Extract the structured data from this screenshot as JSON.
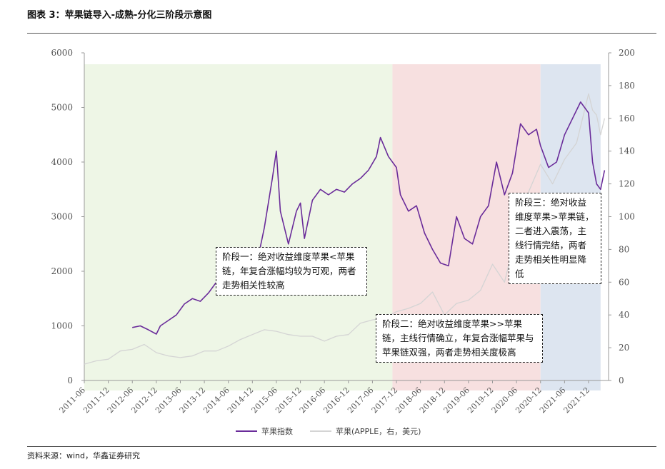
{
  "header": {
    "title": "图表 3：苹果链导入-成熟-分化三阶段示意图"
  },
  "footer": {
    "source": "资料来源：wind，华鑫证券研究"
  },
  "annotations": {
    "stage1": "阶段一：绝对收益维度苹果<苹果链，年复合涨幅均较为可观，两者走势相关性较高",
    "stage2": "阶段二：绝对收益维度苹果>>苹果链，主线行情确立，年复合涨幅苹果与苹果链双强，两者走势相关度极高",
    "stage3": "阶段三：绝对收益维度苹果>苹果链，二者进入震荡，主线行情完结，两者走势相关性明显降低"
  },
  "colors": {
    "index_line": "#6a2c9a",
    "apple_line": "#d4d4d4",
    "stage1_bg": "#eef6e6",
    "stage2_bg": "#f7e0e0",
    "stage3_bg": "#dde5f0"
  },
  "chart_data": {
    "type": "line",
    "title": "",
    "xlabel": "",
    "ylabel": "",
    "x_ticks": [
      "2011-06",
      "2011-12",
      "2012-06",
      "2012-12",
      "2013-06",
      "2013-12",
      "2014-06",
      "2014-12",
      "2015-06",
      "2015-12",
      "2016-06",
      "2016-12",
      "2017-06",
      "2017-12",
      "2018-06",
      "2018-12",
      "2019-06",
      "2019-12",
      "2020-06",
      "2020-12",
      "2021-06",
      "2021-12"
    ],
    "ylim_left": [
      0,
      6000
    ],
    "y_ticks_left": [
      0,
      1000,
      2000,
      3000,
      4000,
      5000,
      6000
    ],
    "ylim_right": [
      0,
      200
    ],
    "y_ticks_right": [
      0,
      20,
      40,
      60,
      80,
      100,
      120,
      140,
      160,
      180,
      200
    ],
    "grid": false,
    "legend_position": "bottom",
    "stages": [
      {
        "start": "2011-06",
        "end": "2017-11"
      },
      {
        "start": "2017-11",
        "end": "2020-12"
      },
      {
        "start": "2020-12",
        "end": "2022-03"
      }
    ],
    "series": [
      {
        "name": "苹果指数",
        "axis": "left",
        "points": [
          [
            "2012-06",
            970
          ],
          [
            "2012-08",
            1000
          ],
          [
            "2012-10",
            930
          ],
          [
            "2012-12",
            850
          ],
          [
            "2013-01",
            1000
          ],
          [
            "2013-03",
            1100
          ],
          [
            "2013-05",
            1200
          ],
          [
            "2013-07",
            1400
          ],
          [
            "2013-09",
            1500
          ],
          [
            "2013-11",
            1450
          ],
          [
            "2014-01",
            1600
          ],
          [
            "2014-03",
            1800
          ],
          [
            "2014-05",
            1650
          ],
          [
            "2014-07",
            1700
          ],
          [
            "2014-09",
            1850
          ],
          [
            "2014-11",
            1750
          ],
          [
            "2015-01",
            2100
          ],
          [
            "2015-03",
            2800
          ],
          [
            "2015-05",
            3700
          ],
          [
            "2015-06",
            4200
          ],
          [
            "2015-07",
            3100
          ],
          [
            "2015-09",
            2500
          ],
          [
            "2015-11",
            3100
          ],
          [
            "2015-12",
            3250
          ],
          [
            "2016-01",
            2600
          ],
          [
            "2016-03",
            3300
          ],
          [
            "2016-05",
            3500
          ],
          [
            "2016-07",
            3400
          ],
          [
            "2016-09",
            3500
          ],
          [
            "2016-11",
            3450
          ],
          [
            "2017-01",
            3600
          ],
          [
            "2017-03",
            3700
          ],
          [
            "2017-05",
            3850
          ],
          [
            "2017-07",
            4100
          ],
          [
            "2017-08",
            4450
          ],
          [
            "2017-10",
            4100
          ],
          [
            "2017-12",
            3900
          ],
          [
            "2018-01",
            3400
          ],
          [
            "2018-03",
            3100
          ],
          [
            "2018-05",
            3200
          ],
          [
            "2018-07",
            2700
          ],
          [
            "2018-09",
            2400
          ],
          [
            "2018-11",
            2150
          ],
          [
            "2019-01",
            2100
          ],
          [
            "2019-03",
            3000
          ],
          [
            "2019-05",
            2600
          ],
          [
            "2019-07",
            2500
          ],
          [
            "2019-09",
            3000
          ],
          [
            "2019-11",
            3200
          ],
          [
            "2020-01",
            4000
          ],
          [
            "2020-03",
            3400
          ],
          [
            "2020-05",
            3800
          ],
          [
            "2020-07",
            4700
          ],
          [
            "2020-09",
            4500
          ],
          [
            "2020-11",
            4600
          ],
          [
            "2020-12",
            4300
          ],
          [
            "2021-02",
            3900
          ],
          [
            "2021-04",
            4000
          ],
          [
            "2021-06",
            4500
          ],
          [
            "2021-08",
            4800
          ],
          [
            "2021-10",
            5100
          ],
          [
            "2021-12",
            4900
          ],
          [
            "2022-01",
            4000
          ],
          [
            "2022-02",
            3600
          ],
          [
            "2022-03",
            3500
          ],
          [
            "2022-04",
            3850
          ]
        ]
      },
      {
        "name": "苹果(APPLE，右，美元)",
        "axis": "right",
        "points": [
          [
            "2011-06",
            10
          ],
          [
            "2011-09",
            12
          ],
          [
            "2011-12",
            13
          ],
          [
            "2012-03",
            18
          ],
          [
            "2012-06",
            19
          ],
          [
            "2012-09",
            22
          ],
          [
            "2012-12",
            17
          ],
          [
            "2013-03",
            15
          ],
          [
            "2013-06",
            14
          ],
          [
            "2013-09",
            15
          ],
          [
            "2013-12",
            18
          ],
          [
            "2014-03",
            18
          ],
          [
            "2014-06",
            21
          ],
          [
            "2014-09",
            25
          ],
          [
            "2014-12",
            28
          ],
          [
            "2015-03",
            31
          ],
          [
            "2015-06",
            30
          ],
          [
            "2015-09",
            28
          ],
          [
            "2015-12",
            27
          ],
          [
            "2016-03",
            27
          ],
          [
            "2016-06",
            24
          ],
          [
            "2016-09",
            27
          ],
          [
            "2016-12",
            28
          ],
          [
            "2017-03",
            35
          ],
          [
            "2017-06",
            37
          ],
          [
            "2017-09",
            38
          ],
          [
            "2017-12",
            42
          ],
          [
            "2018-03",
            44
          ],
          [
            "2018-06",
            47
          ],
          [
            "2018-09",
            54
          ],
          [
            "2018-12",
            40
          ],
          [
            "2019-03",
            47
          ],
          [
            "2019-06",
            49
          ],
          [
            "2019-09",
            55
          ],
          [
            "2019-12",
            71
          ],
          [
            "2020-03",
            60
          ],
          [
            "2020-06",
            90
          ],
          [
            "2020-09",
            115
          ],
          [
            "2020-12",
            132
          ],
          [
            "2021-03",
            120
          ],
          [
            "2021-06",
            135
          ],
          [
            "2021-09",
            145
          ],
          [
            "2021-12",
            175
          ],
          [
            "2022-01",
            165
          ],
          [
            "2022-02",
            162
          ],
          [
            "2022-03",
            150
          ],
          [
            "2022-04",
            160
          ]
        ]
      }
    ]
  }
}
